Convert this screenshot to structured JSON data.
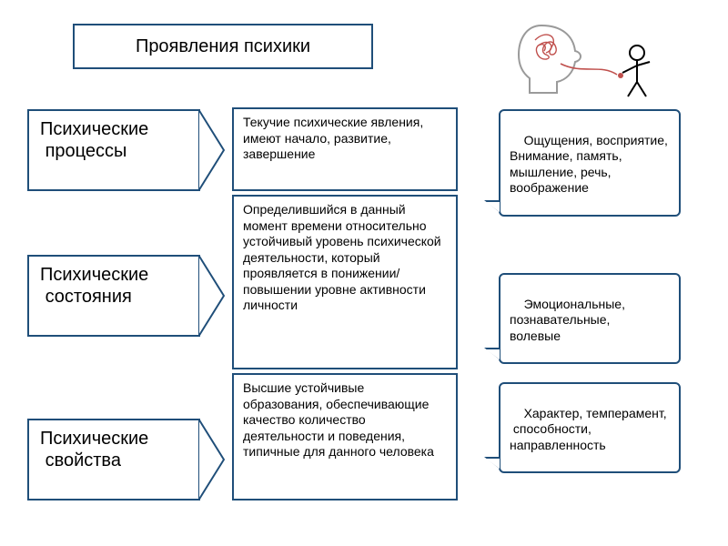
{
  "colors": {
    "border": "#1f4e79",
    "text": "#000000",
    "bg": "#ffffff",
    "illo_head": "#cfcfcf",
    "illo_scribble": "#c0504d",
    "illo_body": "#000000"
  },
  "fonts": {
    "title": 20,
    "category": 20,
    "desc": 14,
    "example": 14
  },
  "title": "Проявления психики",
  "rows": [
    {
      "category": "Психические\n процессы",
      "description": "Текучие психические явления, имеют начало,\n развитие, завершение",
      "examples": "Ощущения, восприятие,\nВнимание, память, мышление, речь, воображение"
    },
    {
      "category": "Психические\n состояния",
      "description": "Определившийся в данный момент времени относительно устойчивый уровень психической деятельности, который проявляется в понижении/повышении уровне активности личности",
      "examples": "Эмоциональные, познавательные,\nволевые"
    },
    {
      "category": "Психические\n свойства",
      "description": "Высшие устойчивые образования, обеспечивающие качество количество деятельности и поведения, типичные для данного человека",
      "examples": "Характер, темперамент,\n способности, направленность"
    }
  ]
}
